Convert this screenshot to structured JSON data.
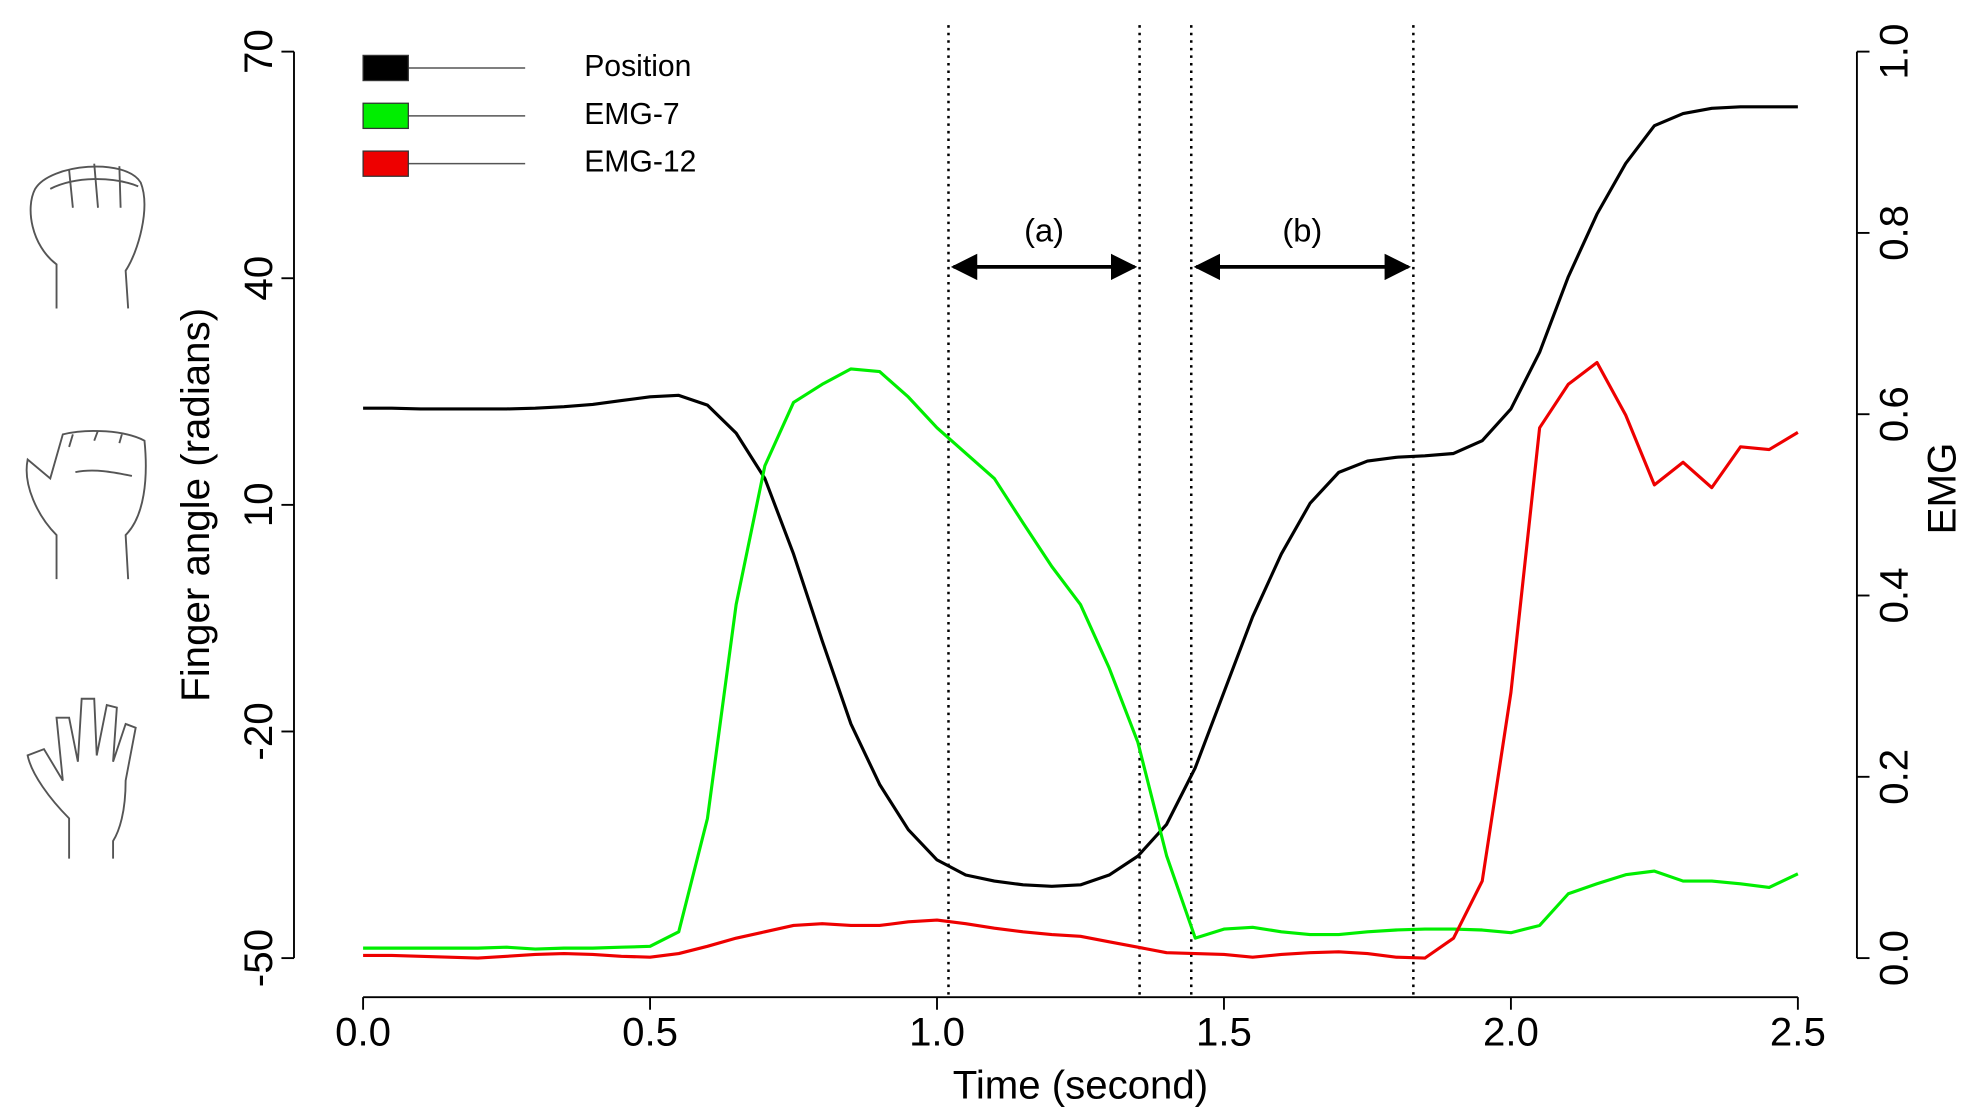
{
  "chart_data": {
    "type": "line",
    "x_label": "Time (second)",
    "y_label": "Finger angle (radians)",
    "y2_label": "EMG",
    "x": [
      0,
      0.05,
      0.1,
      0.15,
      0.2,
      0.25,
      0.3,
      0.35,
      0.4,
      0.45,
      0.5,
      0.55,
      0.6,
      0.65,
      0.7,
      0.75,
      0.8,
      0.85,
      0.9,
      0.95,
      1.0,
      1.05,
      1.1,
      1.15,
      1.2,
      1.25,
      1.3,
      1.35,
      1.4,
      1.45,
      1.5,
      1.55,
      1.6,
      1.65,
      1.7,
      1.75,
      1.8,
      1.85,
      1.9,
      1.95,
      2.0,
      2.05,
      2.1,
      2.15,
      2.2,
      2.25,
      2.3,
      2.35,
      2.4,
      2.45,
      2.5
    ],
    "series": [
      {
        "name": "Position",
        "color": "#000000",
        "axis": "y",
        "values": [
          22.8,
          22.8,
          22.7,
          22.7,
          22.7,
          22.7,
          22.8,
          23,
          23.3,
          23.8,
          24.3,
          24.5,
          23.2,
          19.5,
          13.5,
          3.5,
          -8,
          -19,
          -27,
          -33,
          -37,
          -39,
          -39.8,
          -40.3,
          -40.5,
          -40.3,
          -39,
          -36.5,
          -32.3,
          -24.8,
          -14.8,
          -4.8,
          3.5,
          10.2,
          14.3,
          15.8,
          16.3,
          16.5,
          16.8,
          18.5,
          22.7,
          30.2,
          40.2,
          48.5,
          55.2,
          60.2,
          61.8,
          62.5,
          62.7,
          62.7,
          62.7
        ]
      },
      {
        "name": "EMG-7",
        "color": "#00ee00",
        "axis": "y2",
        "values": [
          0.011,
          0.011,
          0.011,
          0.011,
          0.011,
          0.012,
          0.01,
          0.011,
          0.011,
          0.012,
          0.013,
          0.029,
          0.154,
          0.39,
          0.543,
          0.613,
          0.633,
          0.65,
          0.647,
          0.619,
          0.585,
          0.557,
          0.529,
          0.48,
          0.432,
          0.39,
          0.32,
          0.238,
          0.113,
          0.022,
          0.032,
          0.034,
          0.029,
          0.026,
          0.026,
          0.029,
          0.031,
          0.032,
          0.032,
          0.031,
          0.028,
          0.036,
          0.071,
          0.082,
          0.092,
          0.096,
          0.085,
          0.085,
          0.082,
          0.078,
          0.093
        ]
      },
      {
        "name": "EMG-12",
        "color": "#ee0000",
        "axis": "y2",
        "values": [
          0.003,
          0.003,
          0.002,
          0.001,
          0,
          0.002,
          0.004,
          0.005,
          0.004,
          0.002,
          0.001,
          0.005,
          0.013,
          0.022,
          0.029,
          0.036,
          0.038,
          0.036,
          0.036,
          0.04,
          0.042,
          0.038,
          0.033,
          0.029,
          0.026,
          0.024,
          0.018,
          0.012,
          0.006,
          0.005,
          0.004,
          0.001,
          0.004,
          0.006,
          0.007,
          0.005,
          0.001,
          0,
          0.022,
          0.085,
          0.293,
          0.585,
          0.633,
          0.657,
          0.599,
          0.522,
          0.547,
          0.519,
          0.564,
          0.561,
          0.58
        ]
      }
    ],
    "xlim": [
      0,
      2.5
    ],
    "xticks": [
      {
        "value": 0,
        "label": "0.0"
      },
      {
        "value": 0.5,
        "label": "0.5"
      },
      {
        "value": 1,
        "label": "1.0"
      },
      {
        "value": 1.5,
        "label": "1.5"
      },
      {
        "value": 2,
        "label": "2.0"
      },
      {
        "value": 2.5,
        "label": "2.5"
      }
    ],
    "ylim": [
      -50,
      70
    ],
    "yticks": [
      -50,
      -20,
      10,
      40,
      70
    ],
    "y2lim": [
      0,
      1
    ],
    "y2ticks": [
      {
        "value": 0,
        "label": "0.0"
      },
      {
        "value": 0.2,
        "label": "0.2"
      },
      {
        "value": 0.4,
        "label": "0.4"
      },
      {
        "value": 0.6,
        "label": "0.6"
      },
      {
        "value": 0.8,
        "label": "0.8"
      },
      {
        "value": 1,
        "label": "1.0"
      }
    ],
    "vlines": [
      1.02,
      1.353,
      1.443,
      1.83
    ],
    "annotations": [
      {
        "text": "(a)",
        "x": [
          1.02,
          1.353
        ]
      },
      {
        "text": "(b)",
        "x": [
          1.443,
          1.83
        ]
      }
    ],
    "legend": "upper left",
    "grid": false
  }
}
